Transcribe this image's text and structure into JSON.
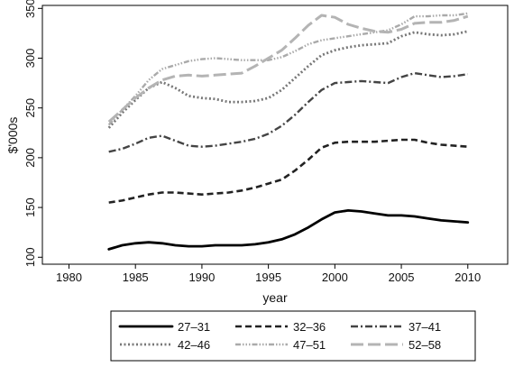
{
  "chart_data": {
    "type": "line",
    "title": "",
    "xlabel": "year",
    "ylabel": "$'000s",
    "xlim": [
      1978,
      2013
    ],
    "ylim": [
      93,
      353
    ],
    "x_ticks": [
      1980,
      1985,
      1990,
      1995,
      2000,
      2005,
      2010
    ],
    "y_ticks": [
      100,
      150,
      200,
      250,
      300,
      350
    ],
    "grid": false,
    "legend_position": "bottom",
    "x": [
      1983,
      1984,
      1985,
      1986,
      1987,
      1988,
      1989,
      1990,
      1991,
      1992,
      1993,
      1994,
      1995,
      1996,
      1997,
      1998,
      1999,
      2000,
      2001,
      2002,
      2003,
      2004,
      2005,
      2006,
      2007,
      2008,
      2009,
      2010
    ],
    "series": [
      {
        "name": "27–31",
        "color": "#000000",
        "values": [
          108,
          112,
          114,
          115,
          114,
          112,
          111,
          111,
          112,
          112,
          112,
          113,
          115,
          118,
          123,
          130,
          138,
          145,
          147,
          146,
          144,
          142,
          142,
          141,
          139,
          137,
          136,
          135
        ]
      },
      {
        "name": "32–36",
        "color": "#222222",
        "values": [
          155,
          157,
          160,
          163,
          165,
          165,
          164,
          163,
          164,
          165,
          167,
          170,
          174,
          178,
          187,
          198,
          210,
          215,
          216,
          216,
          216,
          217,
          218,
          218,
          215,
          213,
          212,
          211
        ]
      },
      {
        "name": "37–41",
        "color": "#444444",
        "values": [
          206,
          209,
          214,
          220,
          222,
          217,
          212,
          211,
          212,
          214,
          216,
          219,
          224,
          232,
          243,
          256,
          268,
          275,
          276,
          277,
          276,
          275,
          281,
          285,
          283,
          281,
          282,
          284
        ]
      },
      {
        "name": "42–46",
        "color": "#777777",
        "values": [
          230,
          245,
          258,
          270,
          276,
          270,
          262,
          260,
          259,
          256,
          256,
          257,
          260,
          268,
          280,
          292,
          303,
          308,
          311,
          313,
          314,
          315,
          322,
          326,
          324,
          323,
          324,
          327
        ]
      },
      {
        "name": "47–51",
        "color": "#aaaaaa",
        "values": [
          233,
          248,
          262,
          278,
          289,
          293,
          297,
          299,
          300,
          299,
          298,
          298,
          298,
          301,
          307,
          314,
          318,
          320,
          322,
          324,
          326,
          328,
          334,
          342,
          342,
          343,
          343,
          345
        ]
      },
      {
        "name": "52–58",
        "color": "#b4b4b4",
        "values": [
          236,
          248,
          260,
          270,
          278,
          282,
          283,
          282,
          283,
          284,
          285,
          292,
          300,
          308,
          320,
          333,
          343,
          341,
          334,
          330,
          327,
          326,
          329,
          335,
          336,
          336,
          338,
          342
        ]
      }
    ]
  }
}
